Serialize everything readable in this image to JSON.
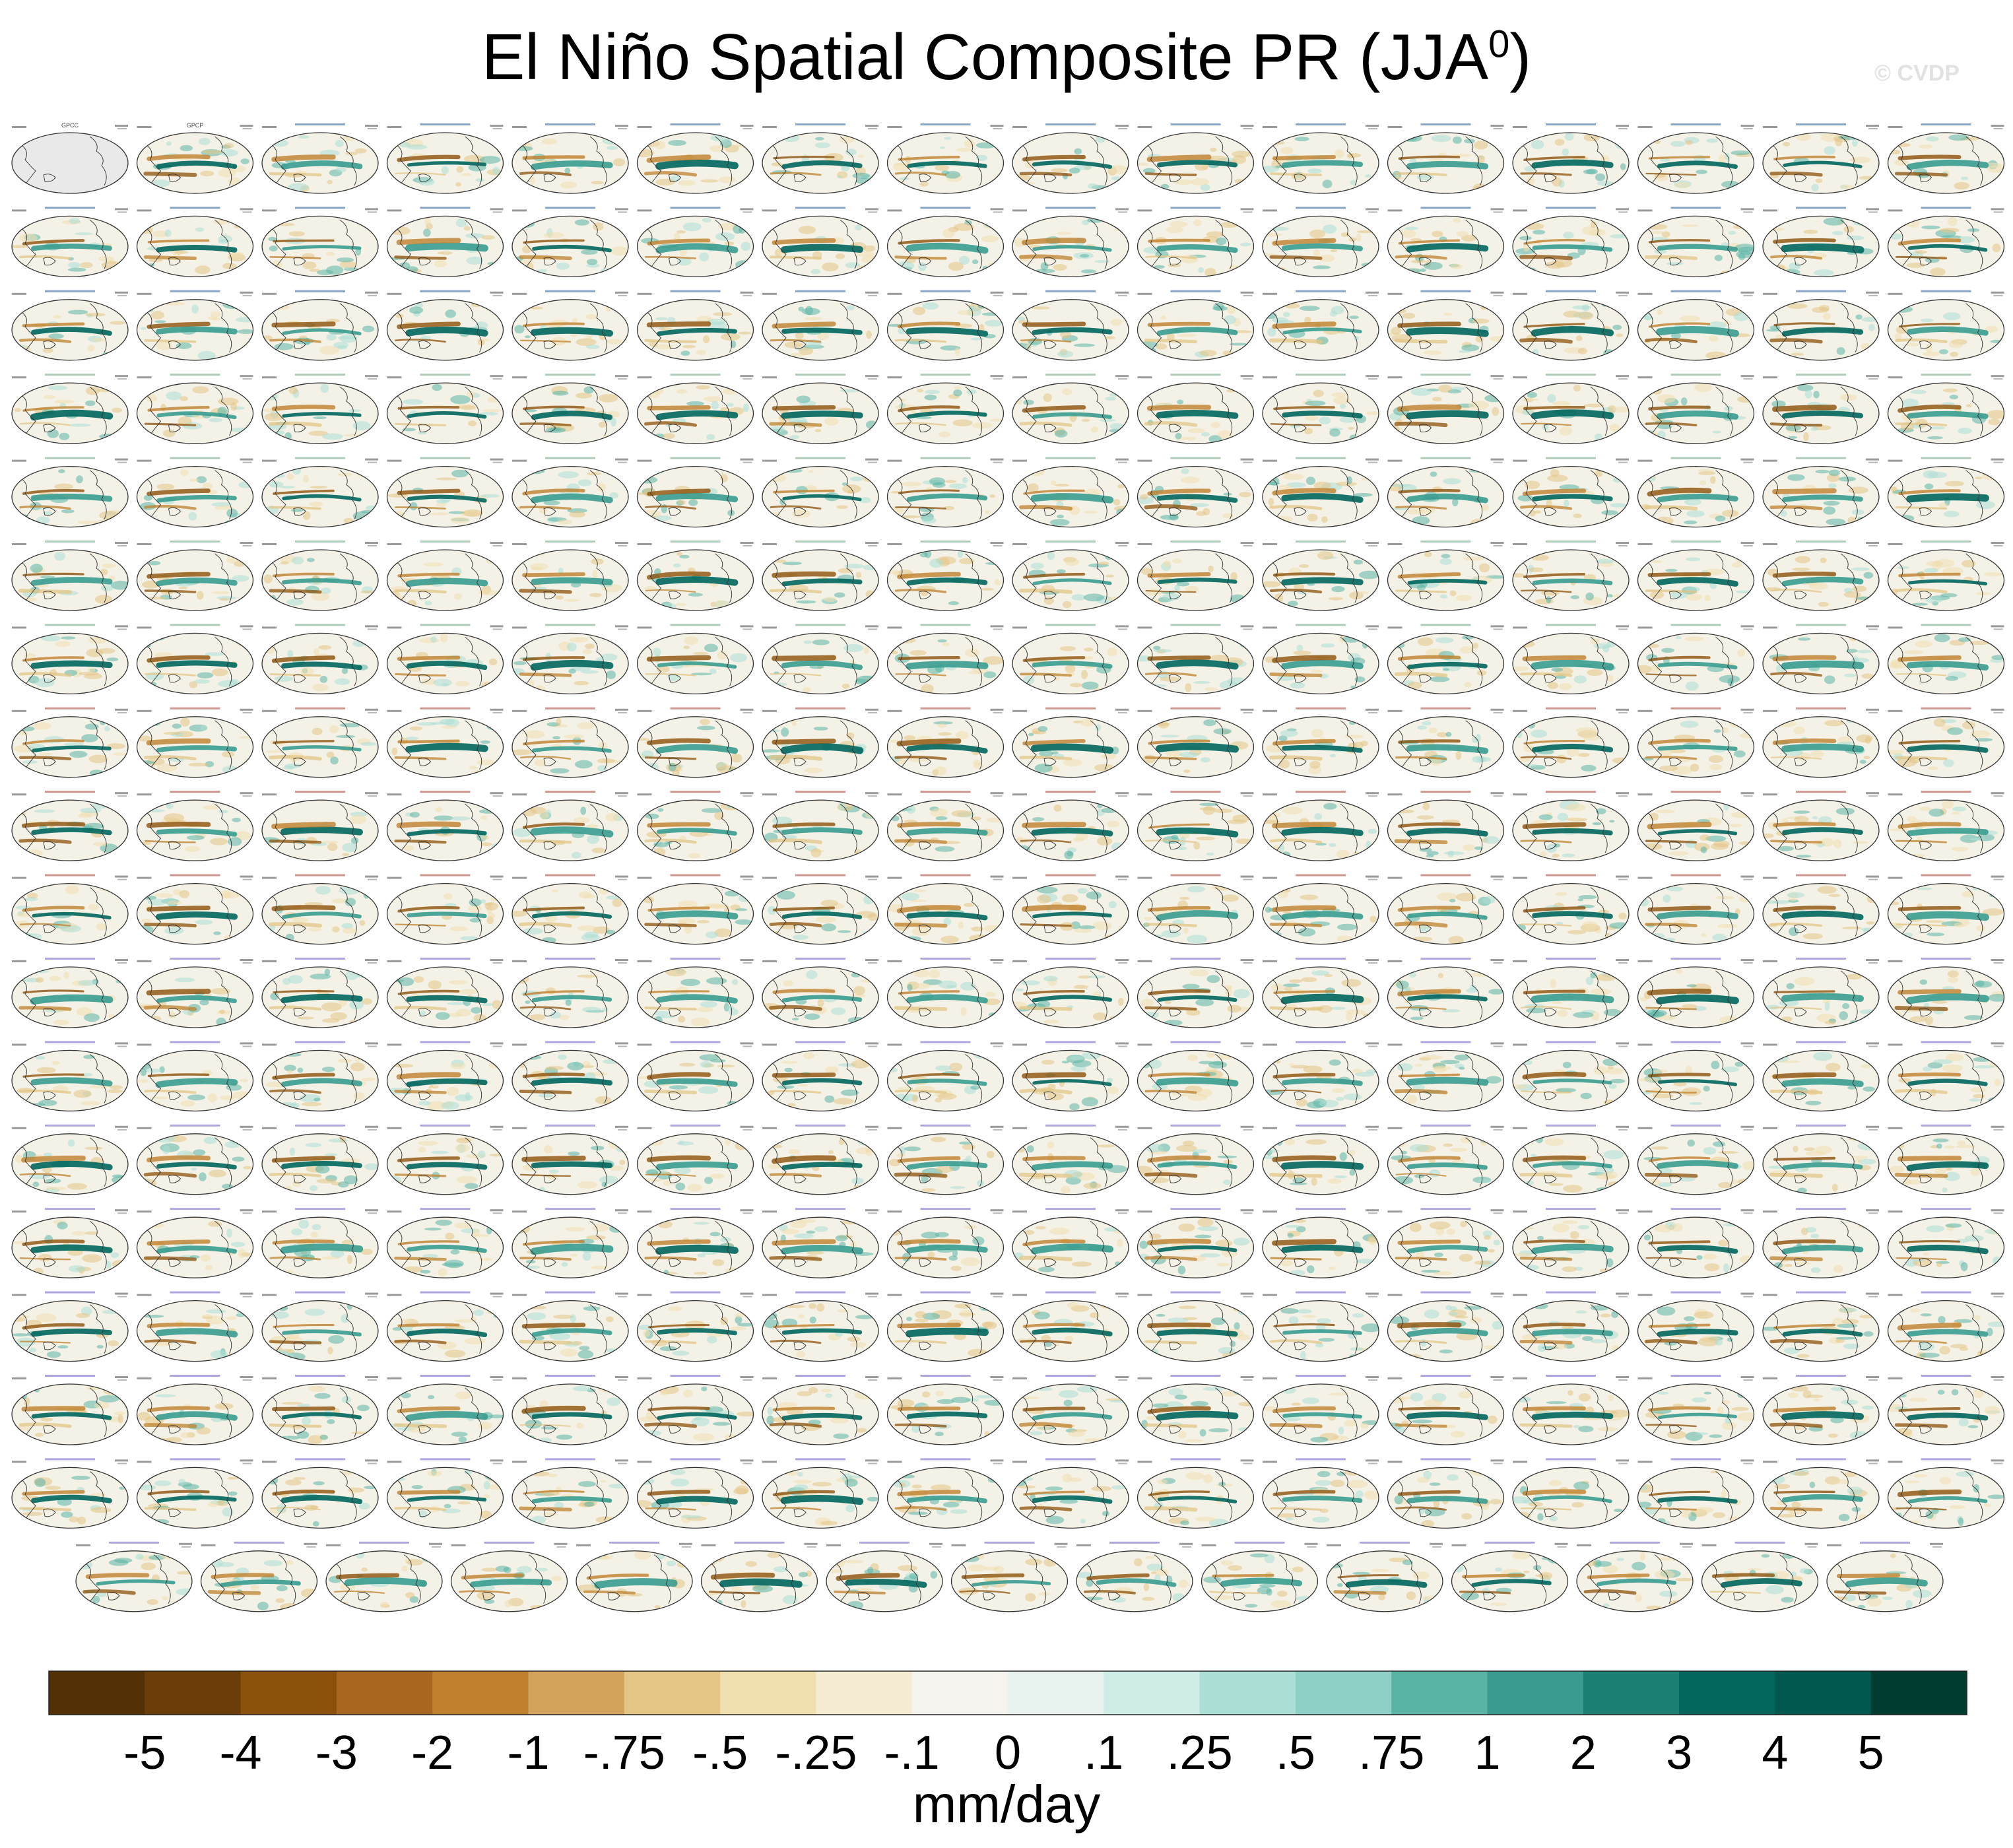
{
  "title": "El Niño Spatial Composite PR (JJA",
  "title_superscript": "0",
  "title_suffix": ")",
  "watermark": "© CVDP",
  "chart_data": {
    "type": "heatmap",
    "description_type": "multi-panel global map composites",
    "panel_rows": 18,
    "panels_per_row": 16,
    "last_row_panels": 15,
    "panel_titles_legible": [
      "GPCC",
      "GPCP"
    ],
    "colorbar": {
      "label": "mm/day",
      "ticks": [
        "-5",
        "-4",
        "-3",
        "-2",
        "-1",
        "-.75",
        "-.5",
        "-.25",
        "-.1",
        "0",
        ".1",
        ".25",
        ".5",
        ".75",
        "1",
        "2",
        "3",
        "4",
        "5"
      ],
      "colors": [
        "#543005",
        "#6b3d09",
        "#8c510a",
        "#a8671e",
        "#bf812d",
        "#d3a35c",
        "#e3c585",
        "#f0dfaf",
        "#f5ecd3",
        "#f5f3ee",
        "#e8f2ef",
        "#cfece6",
        "#abdfd6",
        "#8fd0c6",
        "#5ab4a6",
        "#3a9c90",
        "#1d8075",
        "#01665e",
        "#00584f",
        "#003c30"
      ]
    }
  }
}
